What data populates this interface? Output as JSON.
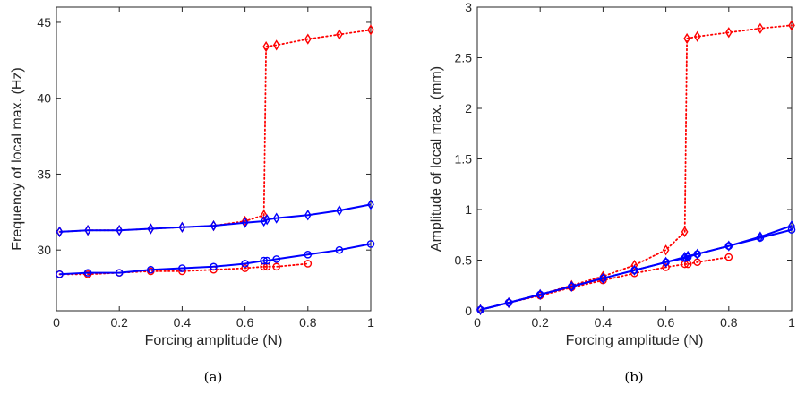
{
  "chart_data": [
    {
      "type": "line",
      "caption": "(a)",
      "xlabel": "Forcing amplitude (N)",
      "ylabel": "Frequency of local max. (Hz)",
      "xlim": [
        0,
        1
      ],
      "ylim": [
        26,
        46
      ],
      "xticks": [
        0,
        0.2,
        0.4,
        0.6,
        0.8,
        1
      ],
      "xtick_labels": [
        "0",
        "0.2",
        "0.4",
        "0.6",
        "0.8",
        "1"
      ],
      "yticks": [
        30,
        35,
        40,
        45
      ],
      "ytick_labels": [
        "30",
        "35",
        "40",
        "45"
      ],
      "grid": false,
      "series": [
        {
          "color": "#ff0000",
          "line": "dotted",
          "marker": "diamond",
          "x": [
            0.01,
            0.1,
            0.2,
            0.3,
            0.4,
            0.5,
            0.6,
            0.66,
            0.667,
            0.7,
            0.8,
            0.9,
            1.0
          ],
          "y": [
            31.2,
            31.3,
            31.3,
            31.4,
            31.5,
            31.6,
            31.9,
            32.3,
            43.4,
            43.5,
            43.9,
            44.2,
            44.5
          ]
        },
        {
          "color": "#ff0000",
          "line": "dotted",
          "marker": "circle",
          "x": [
            0.01,
            0.1,
            0.2,
            0.3,
            0.4,
            0.5,
            0.6,
            0.66,
            0.67,
            0.7,
            0.8
          ],
          "y": [
            28.4,
            28.4,
            28.5,
            28.6,
            28.6,
            28.7,
            28.8,
            28.9,
            28.9,
            28.9,
            29.1
          ]
        },
        {
          "color": "#0000ff",
          "line": "solid",
          "marker": "diamond",
          "x": [
            0.01,
            0.1,
            0.2,
            0.3,
            0.4,
            0.5,
            0.6,
            0.66,
            0.67,
            0.7,
            0.8,
            0.9,
            1.0
          ],
          "y": [
            31.2,
            31.3,
            31.3,
            31.4,
            31.5,
            31.6,
            31.8,
            31.9,
            32.0,
            32.1,
            32.3,
            32.6,
            33.0
          ]
        },
        {
          "color": "#0000ff",
          "line": "solid",
          "marker": "circle",
          "x": [
            0.01,
            0.1,
            0.2,
            0.3,
            0.4,
            0.5,
            0.6,
            0.66,
            0.67,
            0.7,
            0.8,
            0.9,
            1.0
          ],
          "y": [
            28.4,
            28.5,
            28.5,
            28.7,
            28.8,
            28.9,
            29.1,
            29.3,
            29.3,
            29.4,
            29.7,
            30.0,
            30.4
          ]
        }
      ]
    },
    {
      "type": "line",
      "caption": "(b)",
      "xlabel": "Forcing amplitude (N)",
      "ylabel": "Amplitude of local max. (mm)",
      "xlim": [
        0,
        1
      ],
      "ylim": [
        0,
        3
      ],
      "xticks": [
        0,
        0.2,
        0.4,
        0.6,
        0.8,
        1
      ],
      "xtick_labels": [
        "0",
        "0.2",
        "0.4",
        "0.6",
        "0.8",
        "1"
      ],
      "yticks": [
        0,
        0.5,
        1,
        1.5,
        2,
        2.5,
        3
      ],
      "ytick_labels": [
        "0",
        "0.5",
        "1",
        "1.5",
        "2",
        "2.5",
        "3"
      ],
      "grid": false,
      "series": [
        {
          "color": "#ff0000",
          "line": "dotted",
          "marker": "diamond",
          "x": [
            0.01,
            0.1,
            0.2,
            0.3,
            0.4,
            0.5,
            0.6,
            0.66,
            0.667,
            0.7,
            0.8,
            0.9,
            1.0
          ],
          "y": [
            0.01,
            0.08,
            0.16,
            0.25,
            0.34,
            0.45,
            0.6,
            0.78,
            2.69,
            2.71,
            2.75,
            2.79,
            2.82
          ]
        },
        {
          "color": "#ff0000",
          "line": "dotted",
          "marker": "circle",
          "x": [
            0.01,
            0.1,
            0.2,
            0.3,
            0.4,
            0.5,
            0.6,
            0.66,
            0.67,
            0.7,
            0.8
          ],
          "y": [
            0.01,
            0.08,
            0.15,
            0.23,
            0.3,
            0.37,
            0.43,
            0.46,
            0.46,
            0.48,
            0.53
          ]
        },
        {
          "color": "#0000ff",
          "line": "solid",
          "marker": "diamond",
          "x": [
            0.01,
            0.1,
            0.2,
            0.3,
            0.4,
            0.5,
            0.6,
            0.66,
            0.67,
            0.7,
            0.8,
            0.9,
            1.0
          ],
          "y": [
            0.01,
            0.08,
            0.16,
            0.24,
            0.32,
            0.4,
            0.48,
            0.53,
            0.54,
            0.56,
            0.64,
            0.73,
            0.84
          ]
        },
        {
          "color": "#0000ff",
          "line": "solid",
          "marker": "circle",
          "x": [
            0.01,
            0.1,
            0.2,
            0.3,
            0.4,
            0.5,
            0.6,
            0.66,
            0.67,
            0.7,
            0.8,
            0.9,
            1.0
          ],
          "y": [
            0.01,
            0.08,
            0.16,
            0.24,
            0.32,
            0.4,
            0.48,
            0.52,
            0.53,
            0.56,
            0.64,
            0.72,
            0.8
          ]
        }
      ]
    }
  ]
}
